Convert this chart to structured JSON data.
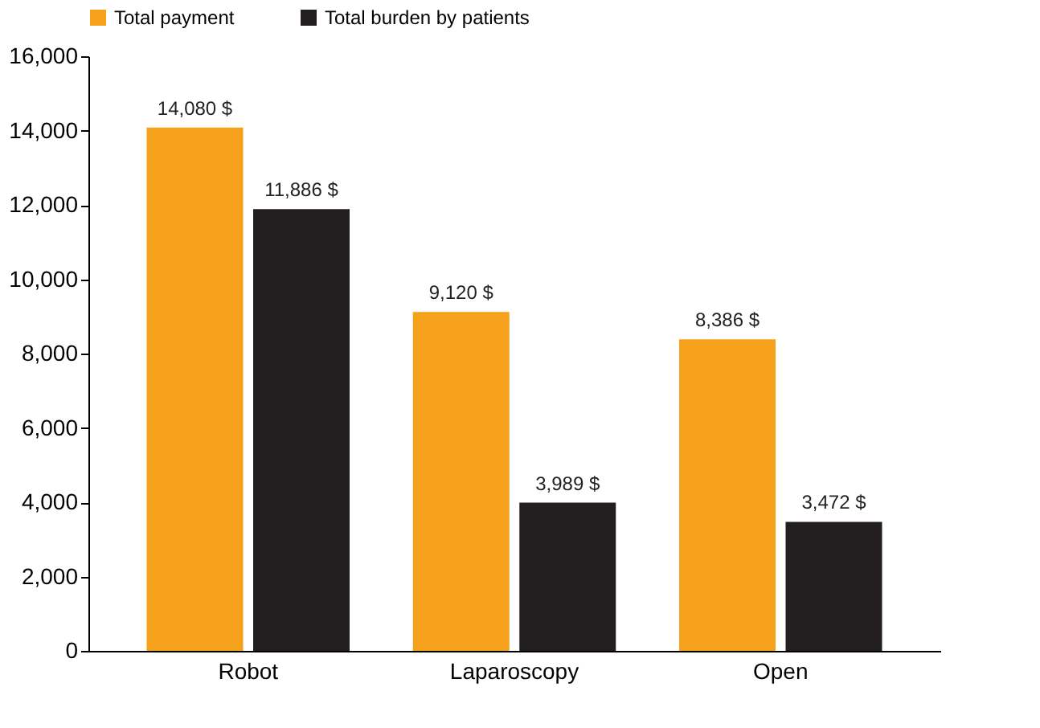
{
  "chart_data": {
    "type": "bar",
    "categories": [
      "Robot",
      "Laparoscopy",
      "Open"
    ],
    "series": [
      {
        "name": "Total payment",
        "color": "#f5a11c",
        "values": [
          14080,
          9120,
          8386
        ],
        "value_labels": [
          "14,080 $",
          "9,120 $",
          "8,386 $"
        ]
      },
      {
        "name": "Total burden by patients",
        "color": "#231f20",
        "values": [
          11886,
          3989,
          3472
        ],
        "value_labels": [
          "11,886 $",
          "3,989 $",
          "3,472 $"
        ]
      }
    ],
    "ylim": [
      0,
      16000
    ],
    "yticks": [
      0,
      {
        "value": 2000,
        "label": "2,000"
      },
      {
        "value": 4000,
        "label": "4,000"
      },
      {
        "value": 6000,
        "label": "6,000"
      },
      {
        "value": 8000,
        "label": "8,000"
      },
      {
        "value": 10000,
        "label": "10,000"
      },
      {
        "value": 12000,
        "label": "12,000"
      },
      {
        "value": 14000,
        "label": "14,000"
      },
      {
        "value": 16000,
        "label": "16,000"
      }
    ],
    "grid": false,
    "legend": "top"
  }
}
